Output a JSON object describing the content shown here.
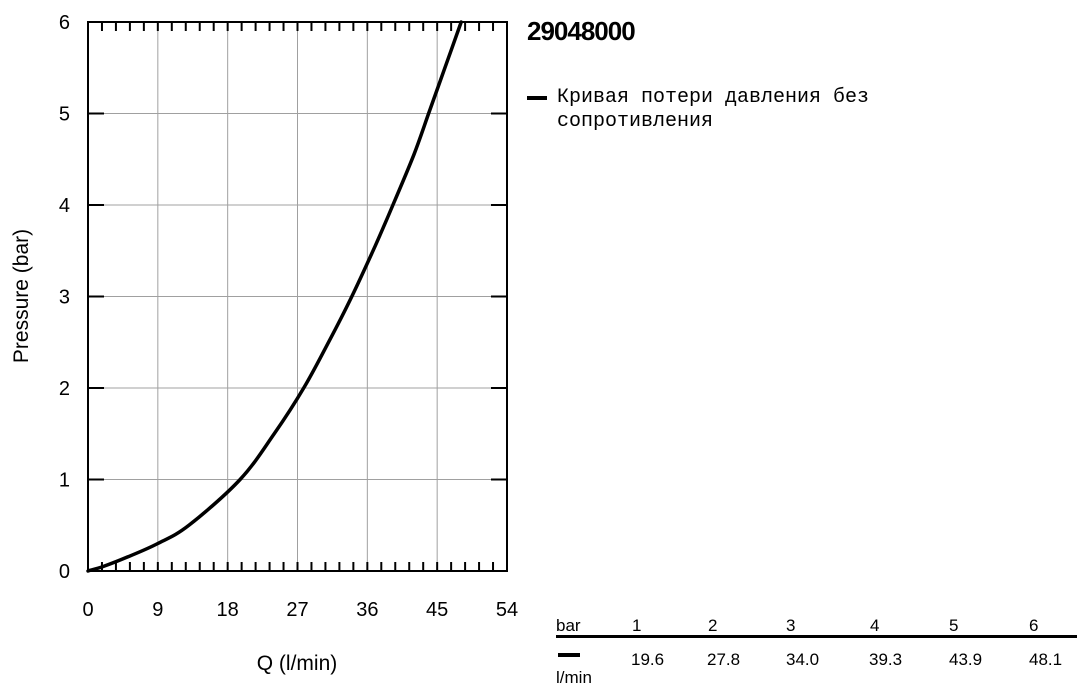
{
  "chart_data": {
    "type": "line",
    "title": "29048000",
    "xlabel": "Q (l/min)",
    "ylabel": "Pressure (bar)",
    "xlim": [
      0,
      54
    ],
    "ylim": [
      0,
      6
    ],
    "xticks": [
      "0",
      "9",
      "18",
      "27",
      "36",
      "45",
      "54"
    ],
    "yticks": [
      "0",
      "1",
      "2",
      "3",
      "4",
      "5",
      "6"
    ],
    "grid": true,
    "legend_position": "right",
    "series": [
      {
        "name": "Кривая потери давления без сопротивления",
        "color": "#000000",
        "x": [
          0,
          2,
          5,
          9,
          13,
          19.6,
          24,
          27.8,
          31,
          34.0,
          37,
          39.3,
          42,
          43.9,
          46,
          48.1
        ],
        "y": [
          0,
          0.05,
          0.15,
          0.3,
          0.5,
          1,
          1.5,
          2,
          2.5,
          3,
          3.55,
          4,
          4.55,
          5,
          5.5,
          6
        ]
      }
    ]
  },
  "table": {
    "header_label": "bar",
    "unit_label": "l/min",
    "bar": [
      "1",
      "2",
      "3",
      "4",
      "5",
      "6"
    ],
    "lmin": [
      "19.6",
      "27.8",
      "34.0",
      "39.3",
      "43.9",
      "48.1"
    ]
  }
}
